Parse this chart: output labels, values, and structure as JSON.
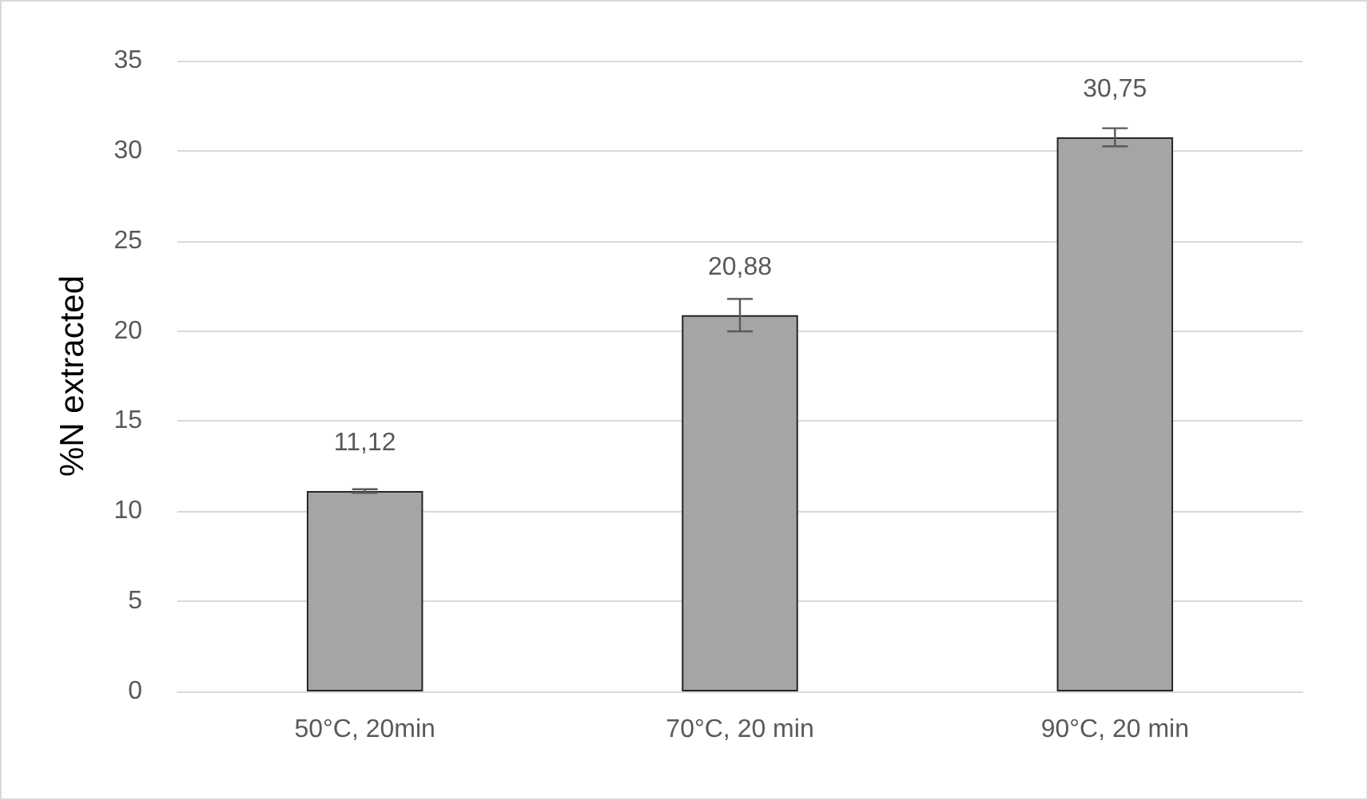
{
  "chart_data": {
    "type": "bar",
    "ylabel": "%N extracted",
    "categories": [
      "50°C, 20min",
      "70°C, 20 min",
      "90°C, 20 min"
    ],
    "values": [
      11.12,
      20.88,
      30.75
    ],
    "value_labels": [
      "11,12",
      "20,88",
      "30,75"
    ],
    "errors": [
      0.1,
      0.9,
      0.5
    ],
    "color": "#a5a5a5",
    "ylim": [
      0,
      35
    ],
    "yticks": [
      0,
      5,
      10,
      15,
      20,
      25,
      30,
      35
    ],
    "grid": "y"
  }
}
